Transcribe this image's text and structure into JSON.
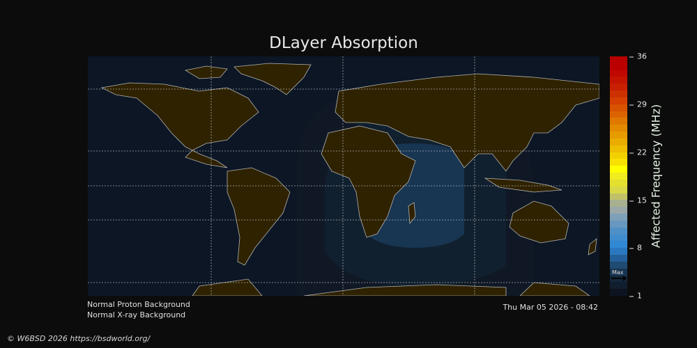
{
  "title": "DLayer Absorption",
  "colorbar": {
    "label": "Affected Frequency (MHz)",
    "ticks": [
      "36",
      "29",
      "22",
      "15",
      "8",
      "1"
    ],
    "range": [
      1,
      36
    ],
    "max_marker_label": "Max",
    "max_marker_value": 4,
    "colors": [
      "#0d1420",
      "#101e2e",
      "#14273c",
      "#183451",
      "#1f4a72",
      "#24609a",
      "#2a78c0",
      "#3189d4",
      "#3f8dcc",
      "#5090c8",
      "#6898c0",
      "#7ea0b8",
      "#9aa8a8",
      "#a8b090",
      "#c0c068",
      "#d8d848",
      "#e4e030",
      "#f0ec20",
      "#ffff00",
      "#f8e000",
      "#f2d000",
      "#eebe00",
      "#eaac00",
      "#e69c00",
      "#e48a00",
      "#e07800",
      "#dc6400",
      "#d85200",
      "#d44000",
      "#cc3000",
      "#c82000",
      "#c41400",
      "#c00800",
      "#bc0000",
      "#b80000"
    ]
  },
  "map": {
    "background": "#0c1624",
    "land_color": "#2e2200",
    "coast_color": "#b4b4b4",
    "absorption_levels": [
      {
        "value_mhz": 1,
        "color": "#0f1824"
      },
      {
        "value_mhz": 2,
        "color": "#11202e"
      },
      {
        "value_mhz": 3,
        "color": "#15273c"
      },
      {
        "value_mhz": 4,
        "color": "#183552"
      }
    ]
  },
  "status": {
    "proton": "Normal Proton Background",
    "xray": "Normal X-ray Background"
  },
  "timestamp": "Thu Mar 05 2026 - 08:42",
  "copyright": "© W6BSD 2026 https://bsdworld.org/"
}
